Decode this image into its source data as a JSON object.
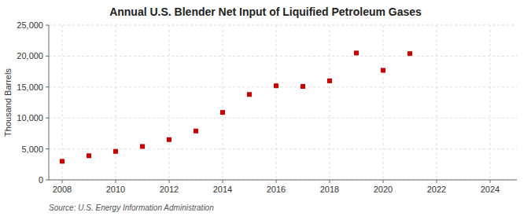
{
  "chart_data": {
    "type": "scatter",
    "title": "Annual U.S. Blender Net Input of Liquified Petroleum Gases",
    "y_label": "Thousand Barrels",
    "source": "Source: U.S. Energy Information Administration",
    "x": [
      2008,
      2009,
      2010,
      2011,
      2012,
      2013,
      2014,
      2015,
      2016,
      2017,
      2018,
      2019,
      2020,
      2021
    ],
    "values": [
      3000,
      3900,
      4600,
      5400,
      6500,
      7900,
      10900,
      13800,
      15200,
      15100,
      16000,
      20500,
      17700,
      20400
    ],
    "color": "#cc0000",
    "marker": "square",
    "xlim": [
      2007.5,
      2025
    ],
    "ylim": [
      0,
      25000
    ],
    "xticks": [
      2008,
      2010,
      2012,
      2014,
      2016,
      2018,
      2020,
      2022,
      2024
    ],
    "yticks": [
      0,
      {
        "value": 5000,
        "label": "5,000"
      },
      {
        "value": 10000,
        "label": "10,000"
      },
      {
        "value": 15000,
        "label": "15,000"
      },
      {
        "value": 20000,
        "label": "20,000"
      },
      {
        "value": 25000,
        "label": "25,000"
      }
    ],
    "grid": true
  }
}
